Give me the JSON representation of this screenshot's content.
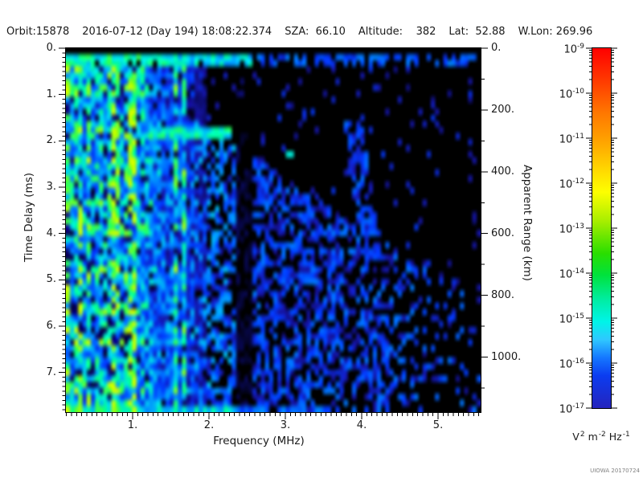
{
  "header": {
    "fields": [
      "Orbit:15878",
      "2016-07-12 (Day 194) 18:08:22.374",
      "SZA:  66.10",
      "Altitude:    382",
      "Lat:  52.88",
      "W.Lon: 269.96"
    ]
  },
  "chart_data": {
    "type": "heatmap",
    "xlabel": "Frequency (MHz)",
    "ylabel": "Time Delay (ms)",
    "y2label": "Apparent Range (km)",
    "xlim_mhz": [
      0.13,
      5.56
    ],
    "ylim_ms": [
      0,
      7.85
    ],
    "y2lim_km": [
      0,
      1180
    ],
    "x_ticks": [
      "1.",
      "2.",
      "3.",
      "4.",
      "5."
    ],
    "x_tick_values": [
      1,
      2,
      3,
      4,
      5
    ],
    "y_ticks": [
      "0.",
      "1.",
      "2.",
      "3.",
      "4.",
      "5.",
      "6.",
      "7."
    ],
    "y_tick_values": [
      0,
      1,
      2,
      3,
      4,
      5,
      6,
      7
    ],
    "y2_ticks": [
      "0.",
      "200.",
      "400.",
      "600.",
      "800.",
      "1000."
    ],
    "y2_tick_values": [
      0,
      200,
      400,
      600,
      800,
      1000
    ],
    "background": "#000000",
    "colorbar": {
      "base": "10",
      "exponents": [
        "-9",
        "-10",
        "-11",
        "-12",
        "-13",
        "-14",
        "-15",
        "-16",
        "-17"
      ],
      "scale": "logarithmic",
      "units_parts": [
        [
          "V",
          "2"
        ],
        [
          "m",
          "-2"
        ],
        [
          "Hz",
          "-1"
        ]
      ],
      "gradient_stops": [
        [
          0,
          "#ff0000"
        ],
        [
          8,
          "#ff3300"
        ],
        [
          18,
          "#ff7700"
        ],
        [
          27,
          "#ffaa00"
        ],
        [
          35,
          "#ffe000"
        ],
        [
          40,
          "#fdff00"
        ],
        [
          48,
          "#a8ee00"
        ],
        [
          57,
          "#2ade00"
        ],
        [
          63,
          "#00e23c"
        ],
        [
          70,
          "#00eda4"
        ],
        [
          76,
          "#00f4e8"
        ],
        [
          81,
          "#2fc7ff"
        ],
        [
          86,
          "#1577ff"
        ],
        [
          91,
          "#0b3cf0"
        ],
        [
          100,
          "#2524bd"
        ]
      ]
    },
    "features": [
      "black strip in first range bin at very top of plot",
      "bright green-cyan direct-signal band at ~0.1 ms delay across all frequencies, fading to blue above ~2.6 MHz",
      "dense vertical plasma-harmonic stripes (green/cyan) below ~2 MHz spanning all time delays",
      "bright cyan-green ionospheric echo segment near 1.3-2.3 MHz at ~1.8 ms delay",
      "diffuse blue speckle filling lower-left, density decreasing toward high frequency and small delay",
      "mostly black above a diagonal boundary in the upper right",
      "dark vertical gap near 2.4 MHz",
      "faint diffuse echo chain near 3.9-4.2 MHz between ~1.7 and 4.5 ms",
      "bright cyan band along bottom edge below ~2.3 MHz",
      "signal amplitudes mostly 1e-17 to 1e-13 (navy-blue-cyan-green), background below 1e-17 is black"
    ]
  },
  "credit": "UIOWA 20170724"
}
